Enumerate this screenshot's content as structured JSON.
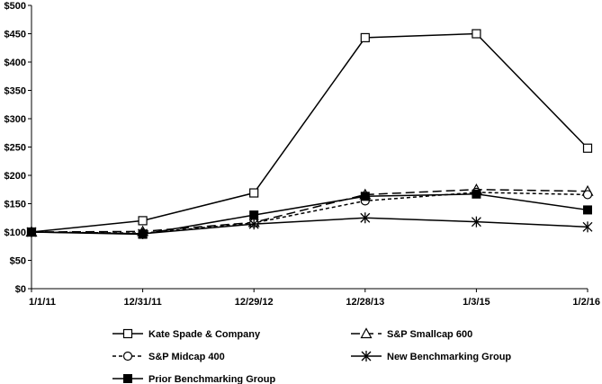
{
  "chart_data": {
    "type": "line",
    "title": "",
    "xlabel": "",
    "ylabel": "",
    "categories": [
      "1/1/11",
      "12/31/11",
      "12/29/12",
      "12/28/13",
      "1/3/15",
      "1/2/16"
    ],
    "ylim": [
      0,
      500
    ],
    "yticks": [
      0,
      50,
      100,
      150,
      200,
      250,
      300,
      350,
      400,
      450,
      500
    ],
    "ytick_labels": [
      "$0",
      "$50",
      "$100",
      "$150",
      "$200",
      "$250",
      "$300",
      "$350",
      "$400",
      "$450",
      "$500"
    ],
    "grid": false,
    "legend_position": "bottom",
    "series": [
      {
        "name": "Kate Spade & Company",
        "values": [
          100,
          120,
          169,
          443,
          450,
          248
        ],
        "dash": "solid",
        "marker": "square-open"
      },
      {
        "name": "S&P Smallcap 600",
        "values": [
          100,
          101,
          117,
          166,
          175,
          172
        ],
        "dash": "long-dash",
        "marker": "triangle-open"
      },
      {
        "name": "S&P Midcap 400",
        "values": [
          100,
          98,
          116,
          155,
          170,
          166
        ],
        "dash": "short-dash",
        "marker": "circle-open"
      },
      {
        "name": "New Benchmarking Group",
        "values": [
          100,
          97,
          114,
          125,
          118,
          109
        ],
        "dash": "solid",
        "marker": "asterisk"
      },
      {
        "name": "Prior Benchmarking Group",
        "values": [
          100,
          96,
          130,
          163,
          167,
          139
        ],
        "dash": "solid",
        "marker": "square-filled"
      }
    ]
  }
}
